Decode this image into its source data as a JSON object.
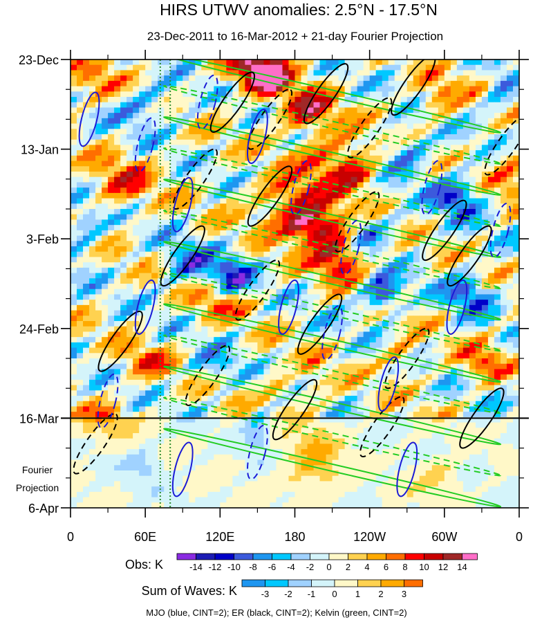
{
  "chart_data": {
    "type": "heatmap",
    "title": "HIRS UTWV anomalies: 2.5°N - 17.5°N",
    "subtitle": "23-Dec-2011 to 16-Mar-2012 + 21-day Fourier Projection",
    "y_tick_labels": [
      "23-Dec",
      "13-Jan",
      "3-Feb",
      "24-Feb",
      "16-Mar",
      "6-Apr"
    ],
    "y_tick_days": [
      0,
      21,
      42,
      63,
      84,
      105
    ],
    "x_tick_labels": [
      "0",
      "60E",
      "120E",
      "180",
      "120W",
      "60W",
      "0"
    ],
    "x_tick_lons": [
      0,
      60,
      120,
      180,
      240,
      300,
      360
    ],
    "xlim": [
      0,
      360
    ],
    "ylim_days": [
      0,
      105
    ],
    "projection_start_day": 84,
    "projection_label_line1": "Fourier",
    "projection_label_line2": "Projection",
    "reference_longitudes": [
      72,
      80
    ],
    "obs_colorbar": {
      "label": "Obs: K",
      "levels": [
        -14,
        -12,
        -10,
        -8,
        -6,
        -4,
        -2,
        0,
        2,
        4,
        6,
        8,
        10,
        12,
        14
      ],
      "colors": [
        "#8a2be2",
        "#1c1cb4",
        "#0000c8",
        "#3c5adc",
        "#1e96f0",
        "#00c8ff",
        "#a0d2ff",
        "#d4f4fa",
        "#fff8c8",
        "#ffd250",
        "#ffaa00",
        "#ff6e00",
        "#ff0000",
        "#c80000",
        "#a02828",
        "#ff6ec8"
      ]
    },
    "waves_colorbar": {
      "label": "Sum of Waves: K",
      "levels": [
        -3,
        -2,
        -1,
        0,
        1,
        2,
        3
      ],
      "colors": [
        "#1e96f0",
        "#00c8ff",
        "#a0d2ff",
        "#d4f4fa",
        "#fff8c8",
        "#ffd250",
        "#ffaa00",
        "#ff6e00"
      ]
    },
    "contour_note": "MJO (blue, CINT=2); ER (black, CINT=2); Kelvin (green, CINT=2)"
  }
}
